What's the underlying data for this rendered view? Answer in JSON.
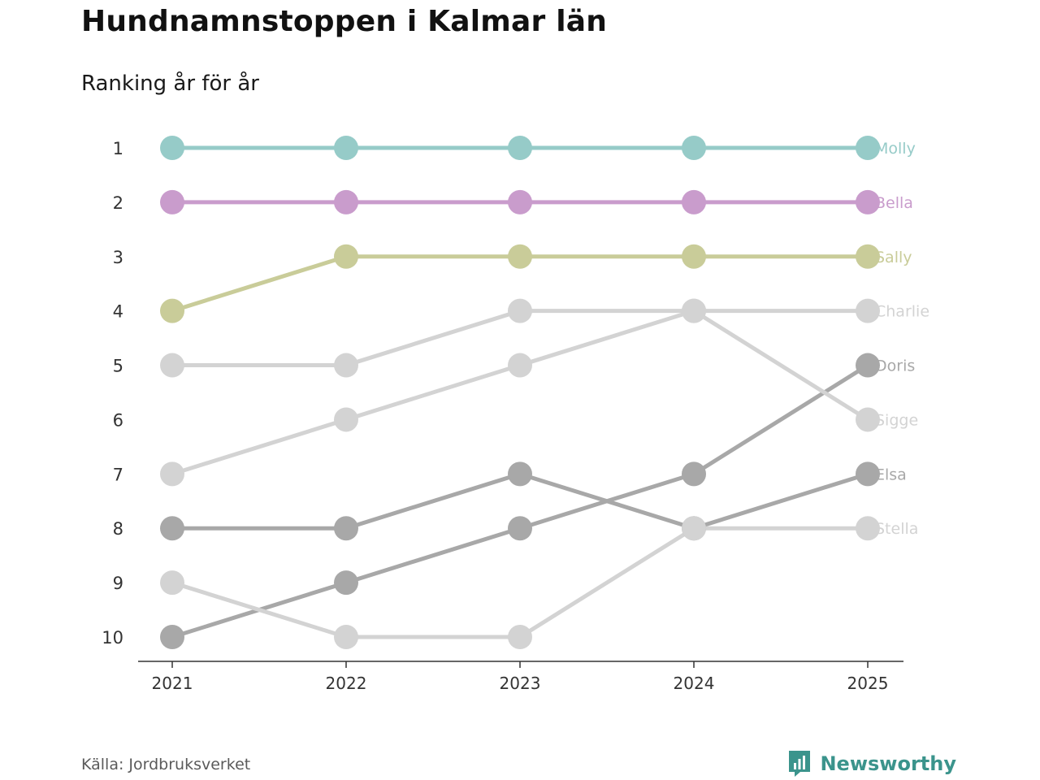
{
  "header": {
    "title": "Hundnamnstoppen i Kalmar län",
    "subtitle": "Ranking år för år"
  },
  "footer": {
    "source": "Källa: Jordbruksverket",
    "brand": "Newsworthy",
    "brand_color": "#3b948c"
  },
  "chart_data": {
    "type": "line",
    "title": "Hundnamnstoppen i Kalmar län",
    "subtitle": "Ranking år för år",
    "x": [
      "2021",
      "2022",
      "2023",
      "2024",
      "2025"
    ],
    "y_ticks": [
      "1",
      "2",
      "3",
      "4",
      "5",
      "6",
      "7",
      "8",
      "9",
      "10"
    ],
    "ylim": [
      1,
      10
    ],
    "y_inverted": true,
    "xlabel": "",
    "ylabel": "",
    "series": [
      {
        "name": "Molly",
        "values": [
          1,
          1,
          1,
          1,
          1
        ],
        "color": "#96cbc8",
        "label_color": "#96cbc8",
        "marker_color": "#96cbc8"
      },
      {
        "name": "Bella",
        "values": [
          2,
          2,
          2,
          2,
          2
        ],
        "color": "#c99ccc",
        "label_color": "#c99ccc",
        "marker_color": "#c99ccc"
      },
      {
        "name": "Sally",
        "values": [
          4,
          3,
          3,
          3,
          3
        ],
        "color": "#c9cc99",
        "label_color": "#c9cc99",
        "marker_color": "#c9cc99"
      },
      {
        "name": "Charlie",
        "values": [
          5,
          5,
          4,
          4,
          4
        ],
        "color": "#d3d3d3",
        "label_color": "#d3d3d3",
        "marker_color": "#d3d3d3"
      },
      {
        "name": "Doris",
        "values": [
          10,
          9,
          8,
          7,
          5
        ],
        "color": "#a8a8a8",
        "label_color": "#a8a8a8",
        "marker_color": "#a8a8a8"
      },
      {
        "name": "Sigge",
        "values": [
          7,
          6,
          5,
          4,
          6
        ],
        "color": "#d3d3d3",
        "label_color": "#d3d3d3",
        "marker_color": "#d3d3d3"
      },
      {
        "name": "Elsa",
        "values": [
          8,
          8,
          7,
          8,
          7
        ],
        "color": "#a8a8a8",
        "label_color": "#a8a8a8",
        "marker_color": "#a8a8a8"
      },
      {
        "name": "Stella",
        "values": [
          9,
          10,
          10,
          8,
          8
        ],
        "color": "#d3d3d3",
        "label_color": "#d3d3d3",
        "marker_color": "#d3d3d3"
      }
    ]
  }
}
